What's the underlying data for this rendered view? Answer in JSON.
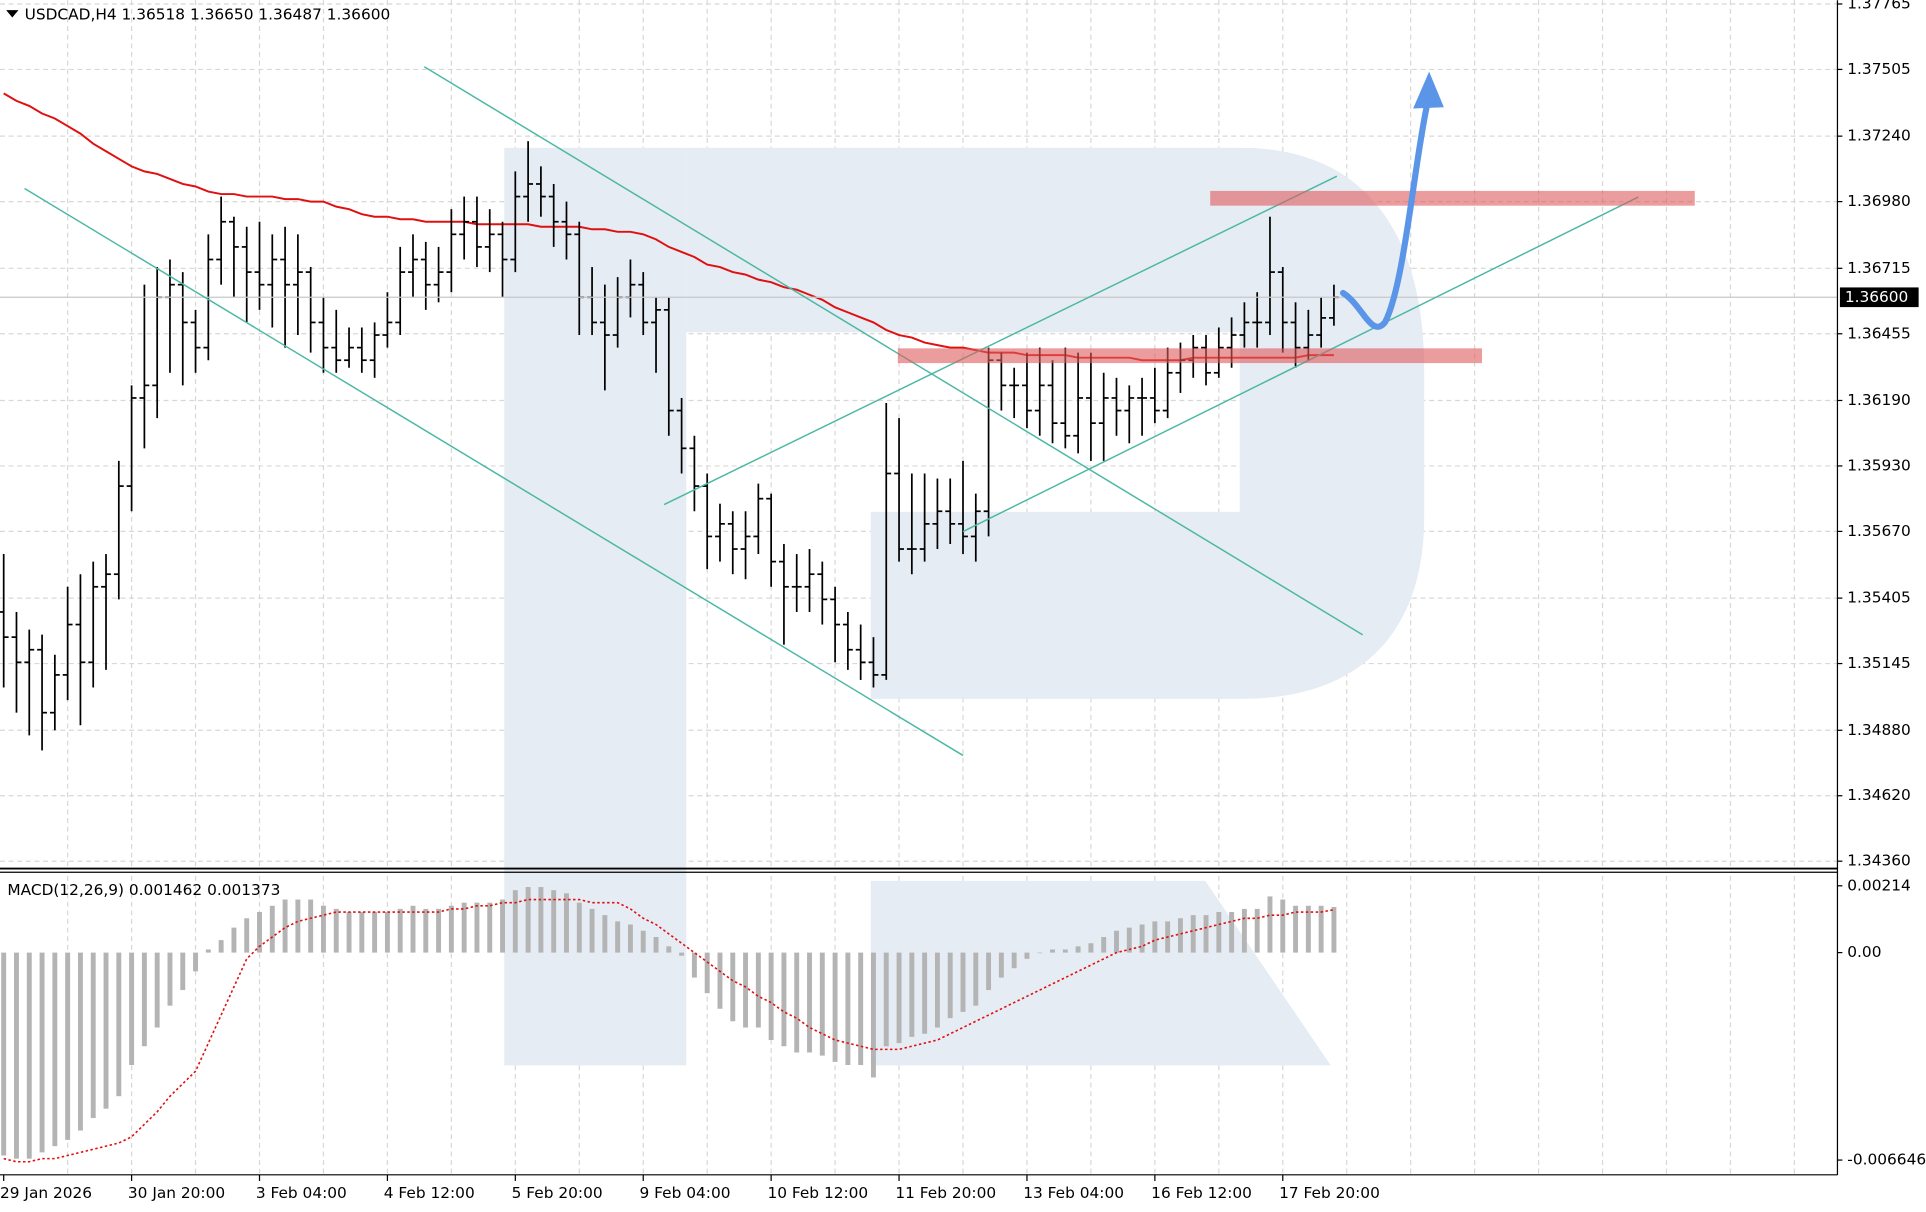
{
  "chart_data": [
    {
      "type": "ohlc",
      "title": "USDCAD,H4  1.36518 1.36650 1.36487 1.36600",
      "price_label": "1.36600",
      "bar_color": "#000000",
      "grid": true,
      "ylim": [
        1.3436,
        1.37765
      ],
      "yticks": [
        1.37765,
        1.37505,
        {
          "value": 1.3724,
          "label": "1.37240"
        },
        {
          "value": 1.3698,
          "label": "1.36980"
        },
        1.36715,
        1.36455,
        {
          "value": 1.3619,
          "label": "1.36190"
        },
        {
          "value": 1.3593,
          "label": "1.35930"
        },
        {
          "value": 1.3567,
          "label": "1.35670"
        },
        1.35405,
        1.35145,
        {
          "value": 1.3488,
          "label": "1.34880"
        },
        {
          "value": 1.3462,
          "label": "1.34620"
        },
        {
          "value": 1.3436,
          "label": "1.34360"
        }
      ],
      "categories": [
        "29 Jan 2026",
        null,
        null,
        null,
        null,
        null,
        null,
        null,
        null,
        null,
        "30 Jan 20:00",
        null,
        null,
        null,
        null,
        null,
        null,
        null,
        null,
        null,
        "3 Feb 04:00",
        null,
        null,
        null,
        null,
        null,
        null,
        null,
        null,
        null,
        "4 Feb 12:00",
        null,
        null,
        null,
        null,
        null,
        null,
        null,
        null,
        null,
        "5 Feb 20:00",
        null,
        null,
        null,
        null,
        null,
        null,
        null,
        null,
        null,
        "9 Feb 04:00",
        null,
        null,
        null,
        null,
        null,
        null,
        null,
        null,
        null,
        "10 Feb 12:00",
        null,
        null,
        null,
        null,
        null,
        null,
        null,
        null,
        null,
        "11 Feb 20:00",
        null,
        null,
        null,
        null,
        null,
        null,
        null,
        null,
        null,
        "13 Feb 04:00",
        null,
        null,
        null,
        null,
        null,
        null,
        null,
        null,
        null,
        "16 Feb 12:00",
        null,
        null,
        null,
        null,
        null,
        null,
        null,
        null,
        null,
        "17 Feb 20:00",
        null,
        null,
        null,
        null
      ],
      "ohlc": [
        [
          1.3535,
          1.3558,
          1.3505,
          1.3525
        ],
        [
          1.3525,
          1.3535,
          1.3495,
          1.3515
        ],
        [
          1.3515,
          1.3528,
          1.3486,
          1.352
        ],
        [
          1.352,
          1.3526,
          1.348,
          1.3495
        ],
        [
          1.3495,
          1.3518,
          1.3488,
          1.351
        ],
        [
          1.351,
          1.3545,
          1.35,
          1.353
        ],
        [
          1.353,
          1.355,
          1.349,
          1.3515
        ],
        [
          1.3515,
          1.3555,
          1.3505,
          1.3545
        ],
        [
          1.3545,
          1.3558,
          1.3512,
          1.355
        ],
        [
          1.355,
          1.3595,
          1.354,
          1.3585
        ],
        [
          1.3585,
          1.3625,
          1.3575,
          1.362
        ],
        [
          1.362,
          1.3665,
          1.36,
          1.3625
        ],
        [
          1.3625,
          1.3672,
          1.3612,
          1.366
        ],
        [
          1.366,
          1.3675,
          1.363,
          1.3665
        ],
        [
          1.3665,
          1.367,
          1.3625,
          1.365
        ],
        [
          1.365,
          1.3655,
          1.363,
          1.364
        ],
        [
          1.364,
          1.3685,
          1.3635,
          1.3675
        ],
        [
          1.3675,
          1.37,
          1.3665,
          1.369
        ],
        [
          1.369,
          1.3692,
          1.366,
          1.368
        ],
        [
          1.368,
          1.3688,
          1.365,
          1.367
        ],
        [
          1.367,
          1.369,
          1.3655,
          1.3665
        ],
        [
          1.3665,
          1.3685,
          1.3648,
          1.3675
        ],
        [
          1.3675,
          1.3688,
          1.364,
          1.3665
        ],
        [
          1.3665,
          1.3685,
          1.3645,
          1.367
        ],
        [
          1.367,
          1.3672,
          1.3638,
          1.365
        ],
        [
          1.365,
          1.366,
          1.363,
          1.364
        ],
        [
          1.364,
          1.3655,
          1.363,
          1.3635
        ],
        [
          1.3635,
          1.3648,
          1.3632,
          1.364
        ],
        [
          1.364,
          1.3648,
          1.363,
          1.3635
        ],
        [
          1.3635,
          1.365,
          1.3628,
          1.3645
        ],
        [
          1.3645,
          1.3662,
          1.364,
          1.365
        ],
        [
          1.365,
          1.368,
          1.3645,
          1.367
        ],
        [
          1.367,
          1.3685,
          1.366,
          1.3675
        ],
        [
          1.3675,
          1.3682,
          1.3655,
          1.3665
        ],
        [
          1.3665,
          1.368,
          1.3658,
          1.367
        ],
        [
          1.367,
          1.3695,
          1.3662,
          1.3685
        ],
        [
          1.3685,
          1.37,
          1.3675,
          1.369
        ],
        [
          1.369,
          1.37,
          1.3672,
          1.368
        ],
        [
          1.368,
          1.3695,
          1.367,
          1.3685
        ],
        [
          1.3685,
          1.369,
          1.366,
          1.3675
        ],
        [
          1.3675,
          1.371,
          1.367,
          1.37
        ],
        [
          1.37,
          1.3722,
          1.369,
          1.3705
        ],
        [
          1.3705,
          1.3712,
          1.3692,
          1.37
        ],
        [
          1.37,
          1.3705,
          1.368,
          1.369
        ],
        [
          1.369,
          1.3698,
          1.3675,
          1.3685
        ],
        [
          1.3685,
          1.369,
          1.3645,
          1.366
        ],
        [
          1.366,
          1.3672,
          1.3645,
          1.365
        ],
        [
          1.365,
          1.3665,
          1.3623,
          1.3645
        ],
        [
          1.3645,
          1.3668,
          1.364,
          1.366
        ],
        [
          1.366,
          1.3675,
          1.3652,
          1.3665
        ],
        [
          1.3665,
          1.367,
          1.3645,
          1.365
        ],
        [
          1.365,
          1.366,
          1.363,
          1.3655
        ],
        [
          1.3655,
          1.366,
          1.3605,
          1.3615
        ],
        [
          1.3615,
          1.362,
          1.359,
          1.36
        ],
        [
          1.36,
          1.3605,
          1.3575,
          1.3585
        ],
        [
          1.3585,
          1.359,
          1.3552,
          1.3565
        ],
        [
          1.3565,
          1.3578,
          1.3555,
          1.357
        ],
        [
          1.357,
          1.3575,
          1.355,
          1.356
        ],
        [
          1.356,
          1.3575,
          1.3548,
          1.3565
        ],
        [
          1.3565,
          1.3586,
          1.3558,
          1.358
        ],
        [
          1.358,
          1.3582,
          1.3545,
          1.3555
        ],
        [
          1.3555,
          1.3562,
          1.3522,
          1.3545
        ],
        [
          1.3545,
          1.3558,
          1.3535,
          1.3545
        ],
        [
          1.3545,
          1.356,
          1.3535,
          1.355
        ],
        [
          1.355,
          1.3555,
          1.353,
          1.354
        ],
        [
          1.354,
          1.3545,
          1.3515,
          1.353
        ],
        [
          1.353,
          1.3535,
          1.3512,
          1.352
        ],
        [
          1.352,
          1.353,
          1.3508,
          1.3515
        ],
        [
          1.3515,
          1.3525,
          1.3505,
          1.351
        ],
        [
          1.351,
          1.3618,
          1.3508,
          1.359
        ],
        [
          1.359,
          1.3612,
          1.3555,
          1.356
        ],
        [
          1.356,
          1.359,
          1.355,
          1.356
        ],
        [
          1.356,
          1.359,
          1.3555,
          1.357
        ],
        [
          1.357,
          1.3588,
          1.356,
          1.3575
        ],
        [
          1.3575,
          1.3588,
          1.3562,
          1.357
        ],
        [
          1.357,
          1.3595,
          1.3558,
          1.3565
        ],
        [
          1.3565,
          1.3582,
          1.3555,
          1.3575
        ],
        [
          1.3575,
          1.364,
          1.3565,
          1.3635
        ],
        [
          1.3635,
          1.3638,
          1.3615,
          1.3625
        ],
        [
          1.3625,
          1.3632,
          1.3612,
          1.3625
        ],
        [
          1.3625,
          1.3638,
          1.3608,
          1.3615
        ],
        [
          1.3615,
          1.364,
          1.3605,
          1.3625
        ],
        [
          1.3625,
          1.3635,
          1.3602,
          1.361
        ],
        [
          1.361,
          1.364,
          1.36,
          1.3605
        ],
        [
          1.3605,
          1.3638,
          1.3598,
          1.362
        ],
        [
          1.362,
          1.3638,
          1.3595,
          1.361
        ],
        [
          1.361,
          1.363,
          1.3595,
          1.362
        ],
        [
          1.362,
          1.3628,
          1.3605,
          1.3615
        ],
        [
          1.3615,
          1.3625,
          1.3602,
          1.362
        ],
        [
          1.362,
          1.3628,
          1.3605,
          1.362
        ],
        [
          1.362,
          1.3632,
          1.361,
          1.3615
        ],
        [
          1.3615,
          1.364,
          1.3612,
          1.363
        ],
        [
          1.363,
          1.3642,
          1.3622,
          1.3635
        ],
        [
          1.3635,
          1.3645,
          1.3628,
          1.364
        ],
        [
          1.364,
          1.3645,
          1.3625,
          1.363
        ],
        [
          1.363,
          1.3648,
          1.3628,
          1.364
        ],
        [
          1.364,
          1.3652,
          1.3632,
          1.3645
        ],
        [
          1.3645,
          1.3658,
          1.364,
          1.365
        ],
        [
          1.365,
          1.3662,
          1.364,
          1.365
        ],
        [
          1.365,
          1.3692,
          1.3645,
          1.367
        ],
        [
          1.367,
          1.3672,
          1.3638,
          1.365
        ],
        [
          1.365,
          1.3658,
          1.3632,
          1.364
        ],
        [
          1.364,
          1.3655,
          1.3635,
          1.3645
        ],
        [
          1.3645,
          1.366,
          1.364,
          1.36518
        ],
        [
          1.36518,
          1.3665,
          1.36487,
          1.366
        ]
      ],
      "ma": {
        "color": "#e01010",
        "values": [
          1.3741,
          1.3738,
          1.3736,
          1.3733,
          1.3731,
          1.3728,
          1.3725,
          1.3721,
          1.3718,
          1.3715,
          1.3712,
          1.371,
          1.3709,
          1.3707,
          1.3705,
          1.3704,
          1.3702,
          1.3701,
          1.3701,
          1.37,
          1.37,
          1.37,
          1.3699,
          1.3699,
          1.3698,
          1.3698,
          1.3696,
          1.3695,
          1.3693,
          1.3692,
          1.3692,
          1.3691,
          1.3691,
          1.369,
          1.369,
          1.369,
          1.369,
          1.3689,
          1.3689,
          1.3689,
          1.3689,
          1.3689,
          1.3688,
          1.3688,
          1.3688,
          1.3688,
          1.3687,
          1.3687,
          1.3686,
          1.3686,
          1.3685,
          1.3683,
          1.368,
          1.3678,
          1.3676,
          1.3673,
          1.3672,
          1.367,
          1.3669,
          1.3667,
          1.3666,
          1.3664,
          1.3663,
          1.3661,
          1.3659,
          1.3656,
          1.3654,
          1.3652,
          1.365,
          1.3647,
          1.3645,
          1.3644,
          1.3642,
          1.3641,
          1.364,
          1.364,
          1.3639,
          1.3638,
          1.3638,
          1.3638,
          1.3637,
          1.3637,
          1.3637,
          1.3637,
          1.3636,
          1.3636,
          1.3636,
          1.3636,
          1.3636,
          1.3635,
          1.3635,
          1.3635,
          1.3635,
          1.3636,
          1.3636,
          1.3636,
          1.3636,
          1.3636,
          1.3636,
          1.3636,
          1.3636,
          1.3636,
          1.3637,
          1.3637,
          1.3637
        ]
      }
    },
    {
      "type": "macd",
      "title": "MACD(12,26,9) 0.001462 0.001373",
      "ylim": [
        -0.006646,
        0.00214
      ],
      "yticks": [
        0.00214,
        {
          "value": 0,
          "label": "0.00"
        },
        -0.006646
      ],
      "histogram": {
        "color": "#b4b4b4",
        "values": [
          -0.0065,
          -0.0066,
          -0.0066,
          -0.0064,
          -0.0062,
          -0.006,
          -0.0057,
          -0.0053,
          -0.005,
          -0.0046,
          -0.0036,
          -0.003,
          -0.0024,
          -0.0017,
          -0.0012,
          -0.0006,
          0.0001,
          0.0004,
          0.0008,
          0.0011,
          0.0013,
          0.0015,
          0.0017,
          0.0017,
          0.0017,
          0.0015,
          0.0014,
          0.0013,
          0.0013,
          0.0013,
          0.0013,
          0.0014,
          0.0015,
          0.0014,
          0.0014,
          0.0015,
          0.0016,
          0.0016,
          0.0016,
          0.0017,
          0.002,
          0.0021,
          0.0021,
          0.002,
          0.0019,
          0.0016,
          0.0014,
          0.0012,
          0.001,
          0.0009,
          0.0007,
          0.0005,
          0.0002,
          -0.0001,
          -0.0008,
          -0.0013,
          -0.0018,
          -0.0022,
          -0.0024,
          -0.0024,
          -0.0028,
          -0.003,
          -0.0032,
          -0.0032,
          -0.0033,
          -0.0035,
          -0.0036,
          -0.0036,
          -0.004,
          -0.003,
          -0.0029,
          -0.0027,
          -0.0026,
          -0.0024,
          -0.0021,
          -0.0019,
          -0.0017,
          -0.0012,
          -0.0008,
          -0.0005,
          -0.0002,
          0,
          0.0001,
          0.0001,
          0.0002,
          0.0003,
          0.0005,
          0.0007,
          0.0008,
          0.0009,
          0.001,
          0.001,
          0.0011,
          0.0012,
          0.0012,
          0.0013,
          0.0013,
          0.0014,
          0.0014,
          0.0018,
          0.0017,
          0.0015,
          0.0015,
          0.0015,
          0.001462
        ]
      },
      "signal": {
        "color": "#e01010",
        "values": [
          -0.0066,
          -0.0067,
          -0.0067,
          -0.0066,
          -0.0066,
          -0.0065,
          -0.0064,
          -0.0063,
          -0.0062,
          -0.0061,
          -0.0059,
          -0.0055,
          -0.0051,
          -0.0046,
          -0.0042,
          -0.0038,
          -0.0029,
          -0.002,
          -0.0011,
          -0.0002,
          0.0002,
          0.0005,
          0.0008,
          0.001,
          0.0011,
          0.0012,
          0.0013,
          0.0013,
          0.0013,
          0.0013,
          0.0013,
          0.0013,
          0.0013,
          0.0013,
          0.0013,
          0.0014,
          0.0014,
          0.0015,
          0.0015,
          0.0016,
          0.0016,
          0.0017,
          0.0017,
          0.0017,
          0.0017,
          0.0017,
          0.0016,
          0.0016,
          0.0016,
          0.0014,
          0.0011,
          0.0009,
          0.0006,
          0.0003,
          0,
          -0.0003,
          -0.0006,
          -0.0009,
          -0.0011,
          -0.0014,
          -0.0016,
          -0.0019,
          -0.0021,
          -0.0024,
          -0.0026,
          -0.0028,
          -0.0029,
          -0.003,
          -0.0031,
          -0.0031,
          -0.0031,
          -0.003,
          -0.0029,
          -0.0028,
          -0.0026,
          -0.0024,
          -0.0022,
          -0.002,
          -0.0018,
          -0.0016,
          -0.0014,
          -0.0012,
          -0.001,
          -0.0008,
          -0.0006,
          -0.0004,
          -0.0002,
          0,
          0.0001,
          0.0002,
          0.0004,
          0.0005,
          0.0006,
          0.0007,
          0.0008,
          0.0009,
          0.001,
          0.0011,
          0.0011,
          0.0012,
          0.0012,
          0.0013,
          0.0013,
          0.0013,
          0.001373
        ]
      }
    }
  ]
}
